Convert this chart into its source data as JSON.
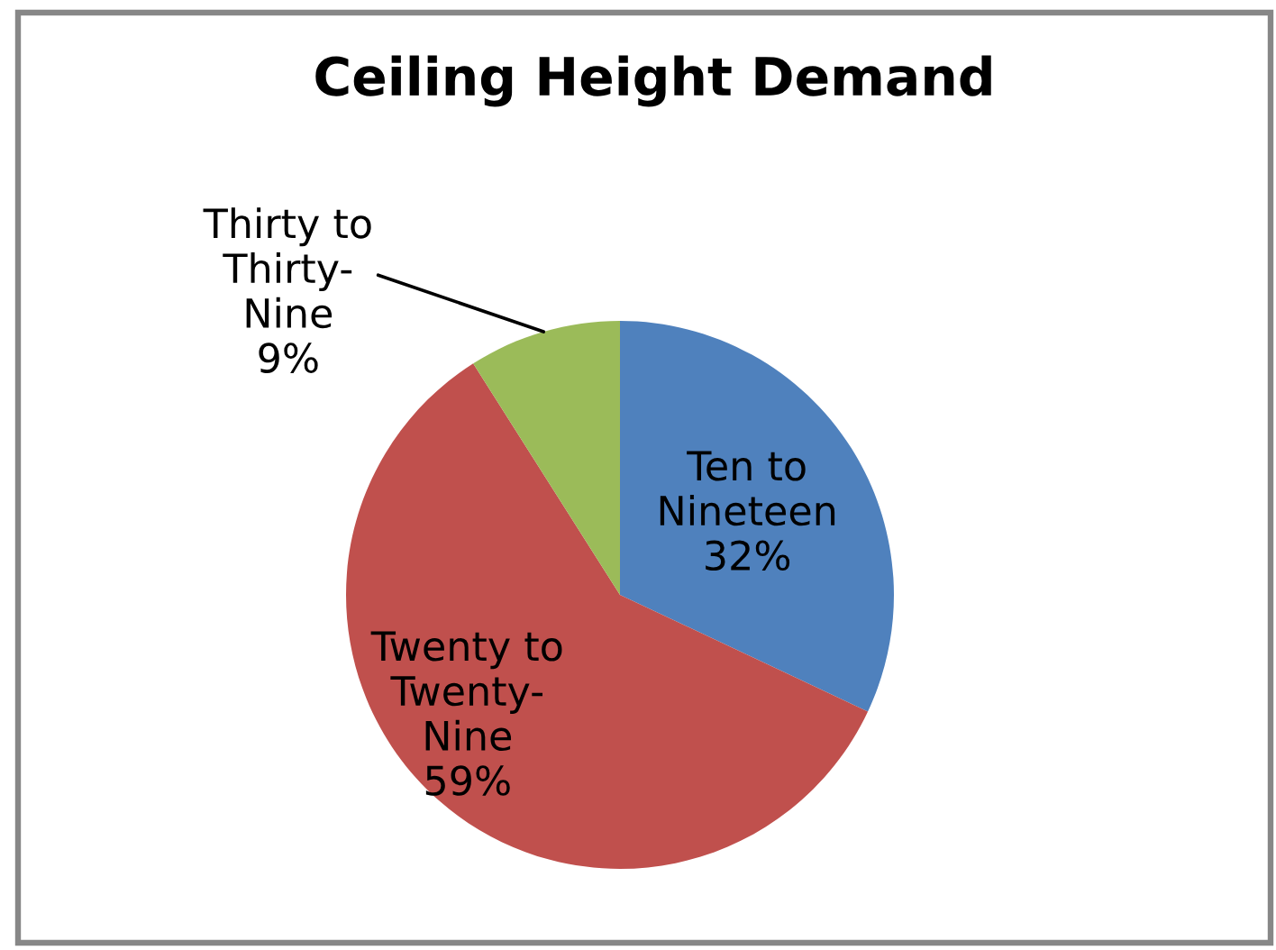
{
  "chart_data": {
    "type": "pie",
    "title": "Ceiling Height Demand",
    "categories": [
      "Ten to\nNineteen",
      "Twenty to\nTwenty-\nNine",
      "Thirty to\nThirty-\nNine"
    ],
    "values": [
      32,
      59,
      9
    ],
    "colors": [
      "#4f81bd",
      "#c0504d",
      "#9bbb59"
    ],
    "value_labels": [
      "32%",
      "59%",
      "9%"
    ]
  }
}
